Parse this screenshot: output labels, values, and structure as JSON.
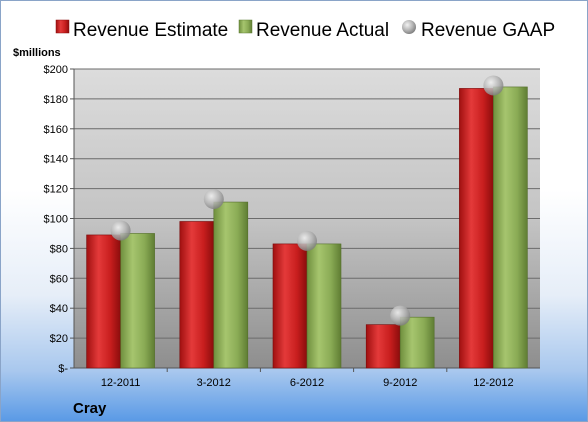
{
  "chart_data": {
    "type": "bar",
    "unit_label": "$millions",
    "company": "Cray",
    "categories": [
      "12-2011",
      "3-2012",
      "6-2012",
      "9-2012",
      "12-2012"
    ],
    "y_tick_labels": [
      "$-",
      "$20",
      "$40",
      "$60",
      "$80",
      "$100",
      "$120",
      "$140",
      "$160",
      "$180",
      "$200"
    ],
    "ylim": [
      0,
      200
    ],
    "grid": true,
    "legend_position": "top",
    "series": [
      {
        "name": "Revenue Estimate",
        "kind": "bar",
        "color": "#d42020",
        "values": [
          89,
          98,
          83,
          29,
          187
        ]
      },
      {
        "name": "Revenue Actual",
        "kind": "bar",
        "color": "#8fb35a",
        "values": [
          90,
          111,
          83,
          34,
          188
        ]
      },
      {
        "name": "Revenue GAAP",
        "kind": "marker",
        "color": "#b8b8b8",
        "values": [
          92,
          113,
          85,
          35,
          189
        ]
      }
    ]
  }
}
